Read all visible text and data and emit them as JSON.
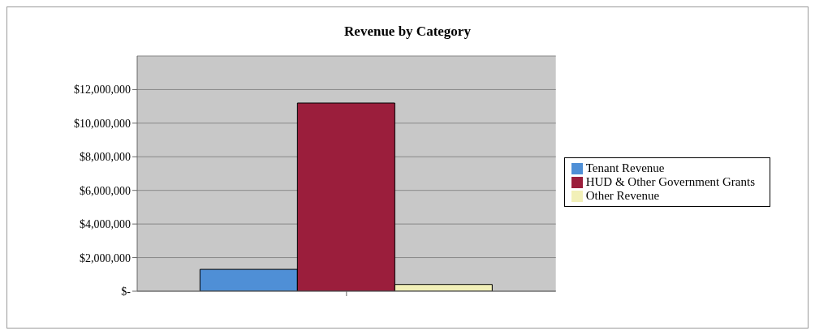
{
  "chart_data": {
    "type": "bar",
    "title": "Revenue by Category",
    "categories": [
      null
    ],
    "series": [
      {
        "name": "Tenant Revenue",
        "color": "#4f8fd6",
        "values": [
          1300000
        ]
      },
      {
        "name": "HUD & Other Government Grants",
        "color": "#9b1e3c",
        "values": [
          11200000
        ]
      },
      {
        "name": "Other Revenue",
        "color": "#f2f0b8",
        "values": [
          400000
        ]
      }
    ],
    "ylim": [
      0,
      14000000
    ],
    "yticks": [
      {
        "value": 0,
        "label": "$-"
      },
      {
        "value": 2000000,
        "label": "$2,000,000"
      },
      {
        "value": 4000000,
        "label": "$4,000,000"
      },
      {
        "value": 6000000,
        "label": "$6,000,000"
      },
      {
        "value": 8000000,
        "label": "$8,000,000"
      },
      {
        "value": 10000000,
        "label": "$10,000,000"
      },
      {
        "value": 12000000,
        "label": "$12,000,000"
      }
    ],
    "grid": "y",
    "legend": "right"
  }
}
